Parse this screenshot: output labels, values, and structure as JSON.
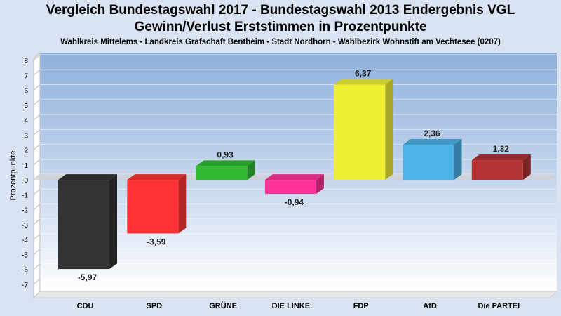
{
  "title_line1": "Vergleich Bundestagswahl 2017 - Bundestagswahl 2013 Endergebnis VGL",
  "title_line2": "Gewinn/Verlust Erststimmen in Prozentpunkte",
  "subtitle": "Wahlkreis Mittelems - Landkreis Grafschaft Bentheim - Stadt Nordhorn - Wahlbezirk Wohnstift am Vechtesee (0207)",
  "chart_data": {
    "type": "bar",
    "title": "Vergleich Bundestagswahl 2017 - Bundestagswahl 2013 Endergebnis VGL",
    "subtitle": "Gewinn/Verlust Erststimmen in Prozentpunkte",
    "ylabel": "Prozentpunkte",
    "xlabel": "",
    "ylim": [
      -7,
      8
    ],
    "yticks": [
      "8",
      "7",
      "6",
      "5",
      "4",
      "3",
      "2",
      "1",
      "0",
      "-1",
      "-2",
      "-3",
      "-4",
      "-5",
      "-6",
      "-7"
    ],
    "grid": true,
    "categories": [
      "CDU",
      "SPD",
      "GRÜNE",
      "DIE LINKE.",
      "FDP",
      "AfD",
      "Die PARTEI"
    ],
    "values": [
      -5.97,
      -3.59,
      0.93,
      -0.94,
      6.37,
      2.36,
      1.32
    ],
    "value_labels": [
      "-5,97",
      "-3,59",
      "0,93",
      "-0,94",
      "6,37",
      "2,36",
      "1,32"
    ],
    "colors": [
      "#333333",
      "#ff3333",
      "#33bb33",
      "#ff3399",
      "#f0f033",
      "#4db3e6",
      "#b33333"
    ]
  }
}
